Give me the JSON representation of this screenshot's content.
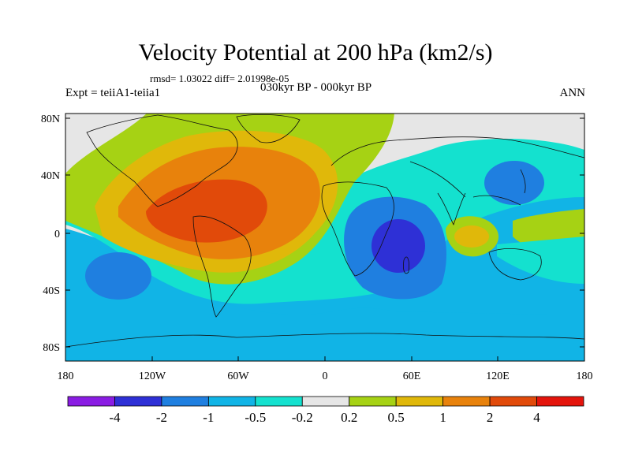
{
  "title": "Velocity Potential at 200 hPa (km2/s)",
  "stats": "rmsd= 1.03022 diff= 2.01998e-05",
  "left_label": "Expt = teiiA1-teiia1",
  "center_label": "030kyr BP - 000kyr BP",
  "right_label": "ANN",
  "axes": {
    "y_ticks": [
      "80N",
      "40N",
      "0",
      "40S",
      "80S"
    ],
    "x_ticks": [
      "180",
      "120W",
      "60W",
      "0",
      "60E",
      "120E",
      "180"
    ]
  },
  "colorbar": {
    "colors": [
      "#8a1ce3",
      "#2e30d6",
      "#1f7fe0",
      "#11b4e6",
      "#14e1cf",
      "#e6e6e6",
      "#a6d214",
      "#e0b80a",
      "#e8820c",
      "#e14a0a",
      "#e4140c"
    ],
    "labels": [
      "-4",
      "-2",
      "-1",
      "-0.5",
      "-0.2",
      "0.2",
      "0.5",
      "1",
      "2",
      "4"
    ]
  }
}
